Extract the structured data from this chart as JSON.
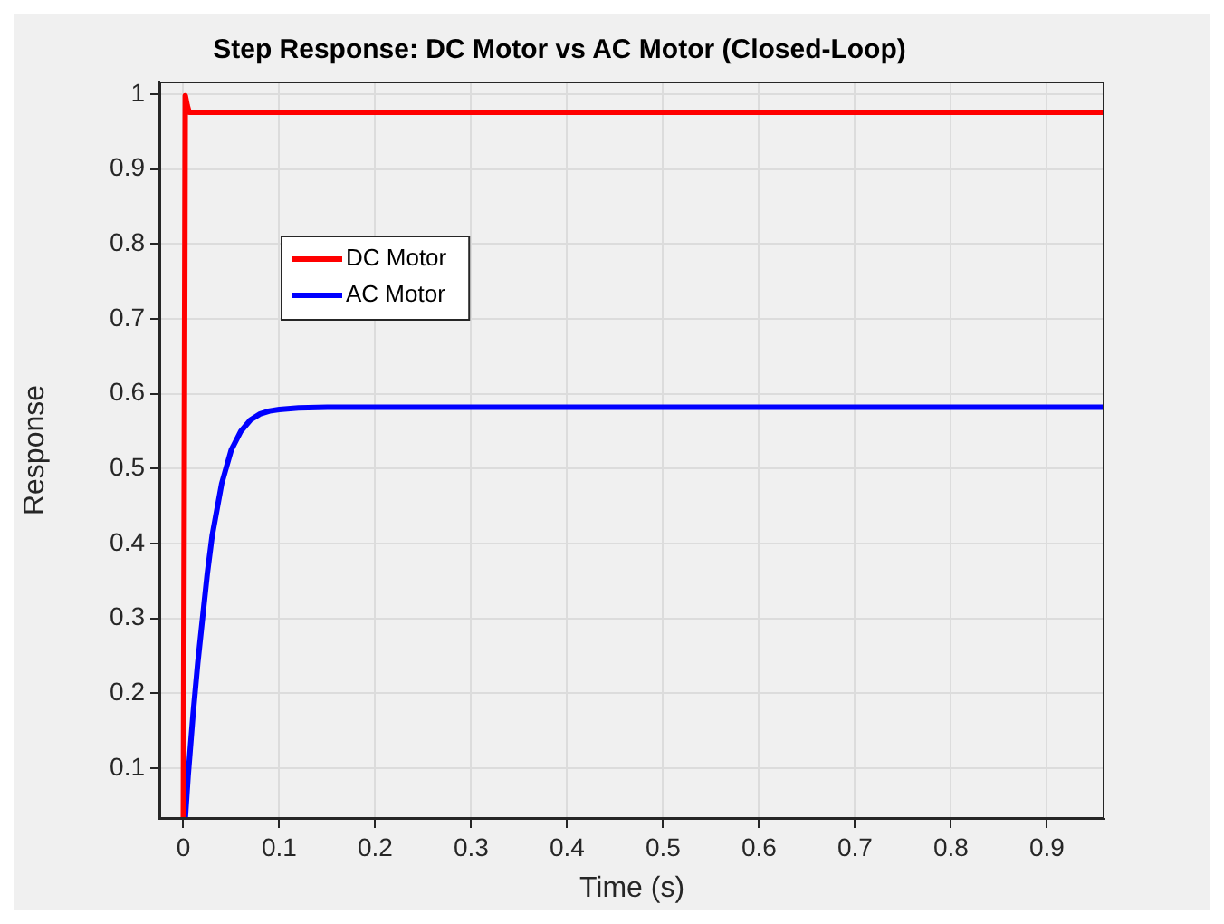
{
  "chart_data": {
    "type": "line",
    "title": "Step Response: DC Motor vs AC Motor (Closed-Loop)",
    "xlabel": "Time (s)",
    "ylabel": "Response",
    "xlim": [
      -0.025,
      0.96
    ],
    "ylim": [
      0.032,
      1.017
    ],
    "xticks": [
      0,
      0.1,
      0.2,
      0.3,
      0.4,
      0.5,
      0.6,
      0.7,
      0.8,
      0.9
    ],
    "yticks": [
      0.1,
      0.2,
      0.3,
      0.4,
      0.5,
      0.6,
      0.7,
      0.8,
      0.9,
      1
    ],
    "grid": true,
    "legend": "top left",
    "marker": "none",
    "line_style": "solid",
    "series": [
      {
        "name": "DC Motor",
        "color": "#ff0000",
        "x": [
          0,
          0.002,
          0.004,
          0.006,
          0.96
        ],
        "values": [
          0.032,
          0.998,
          0.985,
          0.976,
          0.976
        ]
      },
      {
        "name": "AC Motor",
        "color": "#0000ff",
        "x": [
          0.002,
          0.005,
          0.01,
          0.015,
          0.02,
          0.025,
          0.03,
          0.04,
          0.05,
          0.06,
          0.07,
          0.08,
          0.09,
          0.1,
          0.12,
          0.15,
          0.96
        ],
        "values": [
          0.032,
          0.09,
          0.17,
          0.24,
          0.3,
          0.36,
          0.41,
          0.48,
          0.525,
          0.55,
          0.565,
          0.573,
          0.577,
          0.579,
          0.581,
          0.582,
          0.582
        ]
      }
    ]
  }
}
